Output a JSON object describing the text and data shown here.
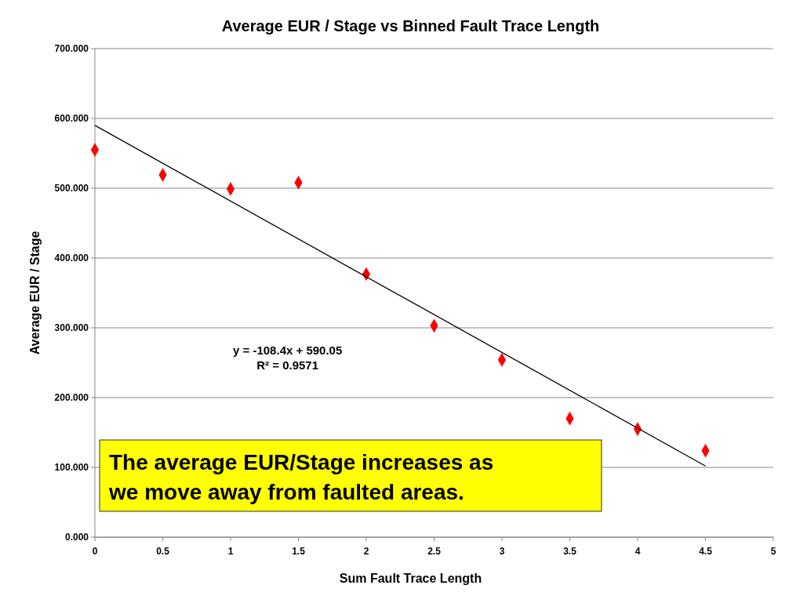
{
  "chart_data": {
    "type": "scatter",
    "title": "Average EUR / Stage vs Binned Fault Trace Length",
    "xlabel": "Sum Fault Trace Length",
    "ylabel": "Average EUR / Stage",
    "x": [
      0,
      0.5,
      1,
      1.5,
      2,
      2.5,
      3,
      3.5,
      4,
      4.5
    ],
    "series": [
      {
        "color": "#ff0000",
        "marker": "diamond",
        "values": [
          555,
          519,
          499,
          508,
          377,
          303,
          254,
          170,
          155,
          124
        ]
      },
      {
        "type": "line",
        "color": "#000000",
        "marker": "none",
        "x": [
          0,
          4.5
        ],
        "values": [
          590,
          102
        ]
      }
    ],
    "xlim": [
      0,
      5
    ],
    "xticks": [
      0,
      0.5,
      1,
      1.5,
      2,
      2.5,
      3,
      3.5,
      4,
      4.5,
      5
    ],
    "ylim": [
      0,
      700
    ],
    "yticks": [
      {
        "value": 0,
        "label": "0.000"
      },
      {
        "value": 100,
        "label": "100.000"
      },
      {
        "value": 200,
        "label": "200.000"
      },
      {
        "value": 300,
        "label": "300.000"
      },
      {
        "value": 400,
        "label": "400.000"
      },
      {
        "value": 500,
        "label": "500.000"
      },
      {
        "value": 600,
        "label": "600.000"
      },
      {
        "value": 700,
        "label": "700.000"
      }
    ],
    "grid": "y",
    "annotations": [
      "y = -108.4x + 590.05\nR² = 0.9571",
      "The average EUR/Stage increases as\nwe move away from faulted areas."
    ]
  }
}
